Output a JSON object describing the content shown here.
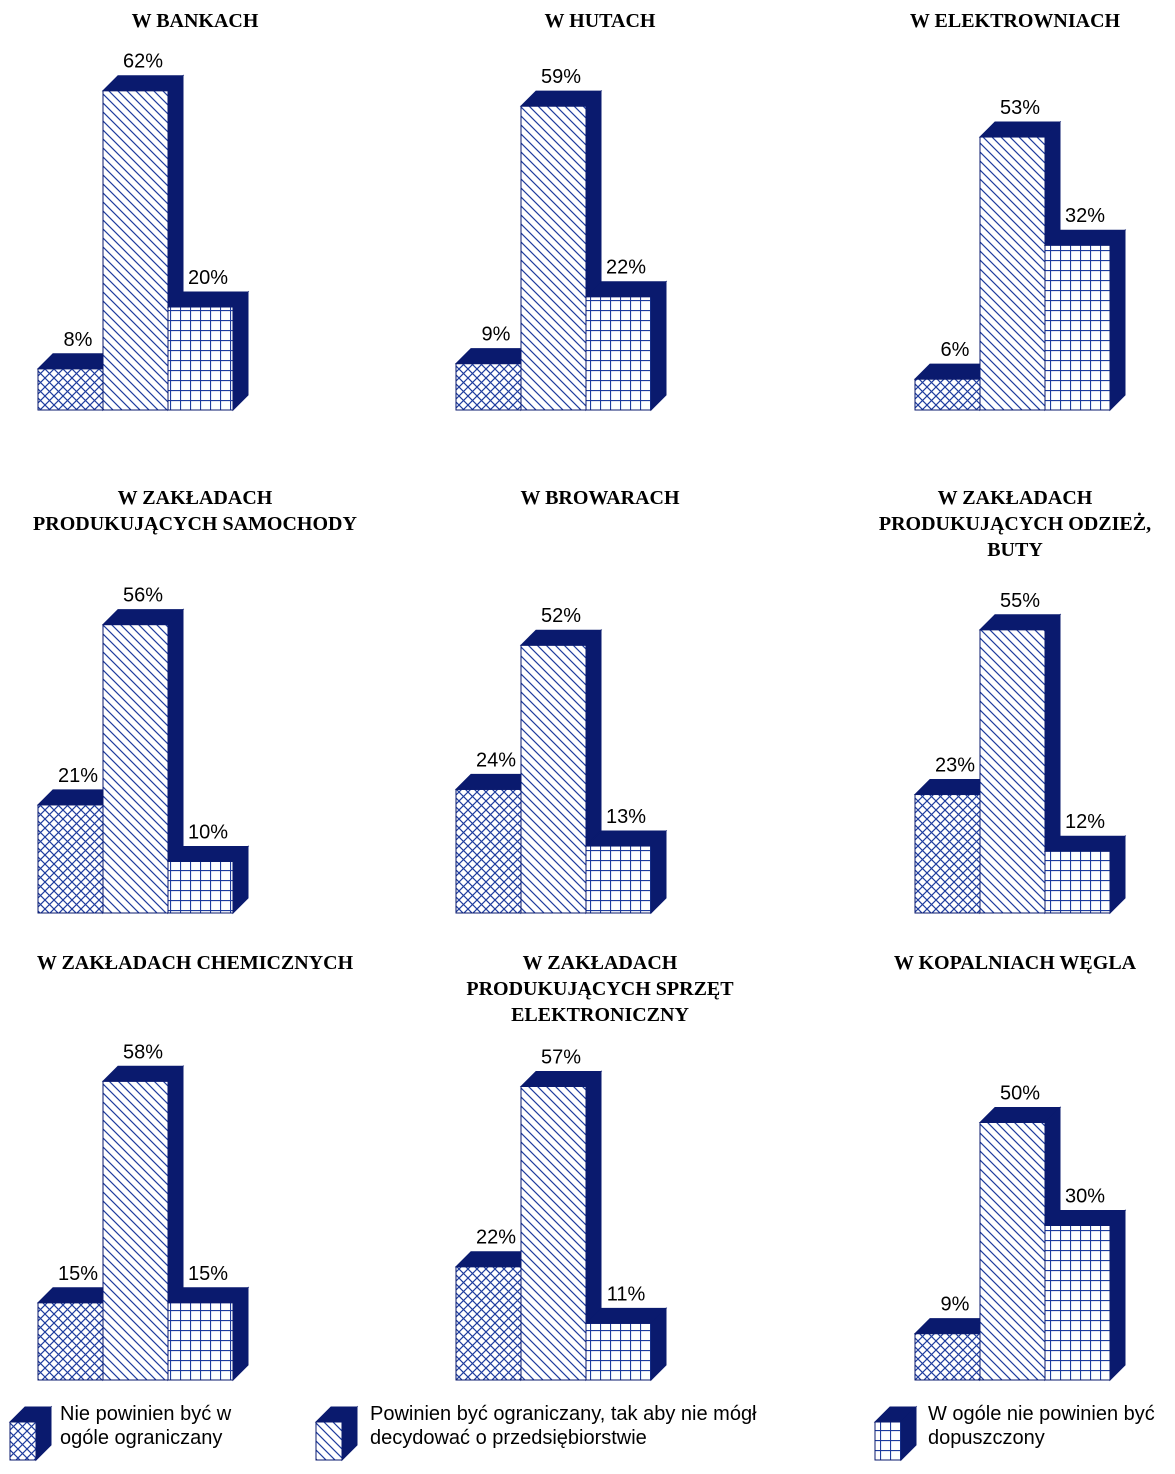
{
  "legend": [
    {
      "name": "Nie powinien być w ogóle ograniczany",
      "pattern": "cross",
      "color": "#0a1a6e"
    },
    {
      "name": "Powinien być ograniczany, tak aby nie mógł decydować o przedsiębiorstwie",
      "pattern": "diag",
      "color": "#0a1a6e"
    },
    {
      "name": "W ogóle nie powinien być dopuszczony",
      "pattern": "grid",
      "color": "#0a1a6e"
    }
  ],
  "chart_data": [
    {
      "type": "bar",
      "title": "W BANKACH",
      "values": [
        8,
        62,
        20
      ],
      "value_labels": [
        "8%",
        "62%",
        "20%"
      ]
    },
    {
      "type": "bar",
      "title": "W HUTACH",
      "values": [
        9,
        59,
        22
      ],
      "value_labels": [
        "9%",
        "59%",
        "22%"
      ]
    },
    {
      "type": "bar",
      "title": "W ELEKTROWNIACH",
      "values": [
        6,
        53,
        32
      ],
      "value_labels": [
        "6%",
        "53%",
        "32%"
      ]
    },
    {
      "type": "bar",
      "title": "W ZAKŁADACH PRODUKUJĄCYCH SAMOCHODY",
      "values": [
        21,
        56,
        10
      ],
      "value_labels": [
        "21%",
        "56%",
        "10%"
      ]
    },
    {
      "type": "bar",
      "title": "W BROWARACH",
      "values": [
        24,
        52,
        13
      ],
      "value_labels": [
        "24%",
        "52%",
        "13%"
      ]
    },
    {
      "type": "bar",
      "title": "W ZAKŁADACH PRODUKUJĄCYCH ODZIEŻ, BUTY",
      "values": [
        23,
        55,
        12
      ],
      "value_labels": [
        "23%",
        "55%",
        "12%"
      ]
    },
    {
      "type": "bar",
      "title": "W ZAKŁADACH CHEMICZNYCH",
      "values": [
        15,
        58,
        15
      ],
      "value_labels": [
        "15%",
        "58%",
        "15%"
      ]
    },
    {
      "type": "bar",
      "title": "W ZAKŁADACH PRODUKUJĄCYCH SPRZĘT ELEKTRONICZNY",
      "values": [
        22,
        57,
        11
      ],
      "value_labels": [
        "22%",
        "57%",
        "11%"
      ]
    },
    {
      "type": "bar",
      "title": "W KOPALNIACH WĘGLA",
      "values": [
        9,
        50,
        30
      ],
      "value_labels": [
        "9%",
        "50%",
        "30%"
      ]
    }
  ]
}
